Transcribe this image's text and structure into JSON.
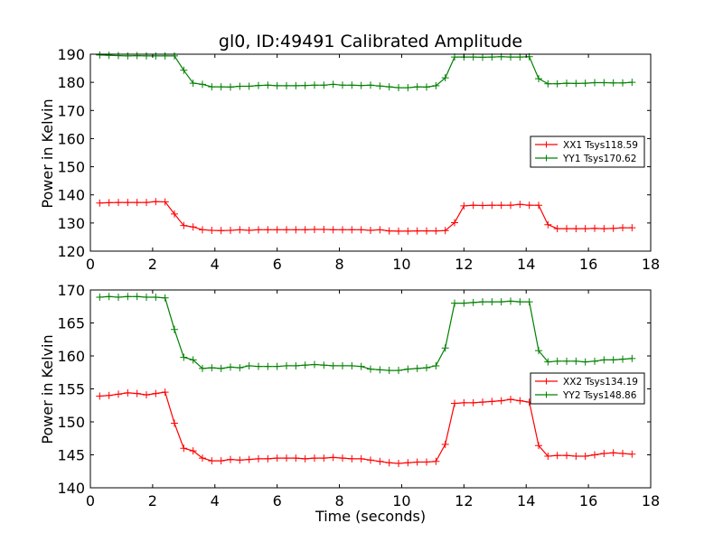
{
  "chart_data": [
    {
      "type": "line",
      "title": "gl0, ID:49491 Calibrated Amplitude",
      "xlabel": "",
      "ylabel": "Power in Kelvin",
      "xlim": [
        0,
        18
      ],
      "ylim": [
        120,
        190
      ],
      "xticks": [
        0,
        2,
        4,
        6,
        8,
        10,
        12,
        14,
        16,
        18
      ],
      "yticks": [
        120,
        130,
        140,
        150,
        160,
        170,
        180,
        190
      ],
      "legend_position": "right",
      "grid": false,
      "x": [
        0.3,
        0.6,
        0.9,
        1.2,
        1.5,
        1.8,
        2.1,
        2.4,
        2.7,
        3.0,
        3.3,
        3.6,
        3.9,
        4.2,
        4.5,
        4.8,
        5.1,
        5.4,
        5.7,
        6.0,
        6.3,
        6.6,
        6.9,
        7.2,
        7.5,
        7.8,
        8.1,
        8.4,
        8.7,
        9.0,
        9.3,
        9.6,
        9.9,
        10.2,
        10.5,
        10.8,
        11.1,
        11.4,
        11.7,
        12.0,
        12.3,
        12.6,
        12.9,
        13.2,
        13.5,
        13.8,
        14.1,
        14.4,
        14.7,
        15.0,
        15.3,
        15.6,
        15.9,
        16.2,
        16.5,
        16.8,
        17.1,
        17.4
      ],
      "series": [
        {
          "name": "XX1 Tsys118.59",
          "color": "#ff0000",
          "values": [
            137.1,
            137.2,
            137.3,
            137.3,
            137.3,
            137.3,
            137.6,
            137.5,
            133.2,
            129.1,
            128.6,
            127.6,
            127.4,
            127.3,
            127.4,
            127.6,
            127.4,
            127.6,
            127.6,
            127.6,
            127.6,
            127.6,
            127.6,
            127.7,
            127.7,
            127.6,
            127.6,
            127.6,
            127.6,
            127.4,
            127.6,
            127.2,
            127.1,
            127.1,
            127.2,
            127.2,
            127.2,
            127.3,
            130.1,
            136.1,
            136.3,
            136.2,
            136.3,
            136.3,
            136.3,
            136.6,
            136.3,
            136.3,
            129.4,
            128.0,
            128.0,
            128.0,
            128.0,
            128.1,
            128.0,
            128.1,
            128.3,
            128.3
          ]
        },
        {
          "name": "YY1 Tsys170.62",
          "color": "#008000",
          "values": [
            189.7,
            189.6,
            189.5,
            189.4,
            189.5,
            189.4,
            189.4,
            189.4,
            189.4,
            184.3,
            179.7,
            179.3,
            178.4,
            178.4,
            178.3,
            178.6,
            178.6,
            178.9,
            179.0,
            178.8,
            178.8,
            178.8,
            178.9,
            179.0,
            179.0,
            179.3,
            179.0,
            179.0,
            178.9,
            179.0,
            178.7,
            178.4,
            178.1,
            178.1,
            178.4,
            178.3,
            178.8,
            181.6,
            189.0,
            189.0,
            189.0,
            188.9,
            189.0,
            189.1,
            189.0,
            189.0,
            189.1,
            181.3,
            179.5,
            179.5,
            179.7,
            179.6,
            179.7,
            179.9,
            179.9,
            179.8,
            179.8,
            180.0
          ]
        }
      ]
    },
    {
      "type": "line",
      "title": "",
      "xlabel": "Time (seconds)",
      "ylabel": "Power in Kelvin",
      "xlim": [
        0,
        18
      ],
      "ylim": [
        140,
        170
      ],
      "xticks": [
        0,
        2,
        4,
        6,
        8,
        10,
        12,
        14,
        16,
        18
      ],
      "yticks": [
        140,
        145,
        150,
        155,
        160,
        165,
        170
      ],
      "legend_position": "right",
      "grid": false,
      "x": [
        0.3,
        0.6,
        0.9,
        1.2,
        1.5,
        1.8,
        2.1,
        2.4,
        2.7,
        3.0,
        3.3,
        3.6,
        3.9,
        4.2,
        4.5,
        4.8,
        5.1,
        5.4,
        5.7,
        6.0,
        6.3,
        6.6,
        6.9,
        7.2,
        7.5,
        7.8,
        8.1,
        8.4,
        8.7,
        9.0,
        9.3,
        9.6,
        9.9,
        10.2,
        10.5,
        10.8,
        11.1,
        11.4,
        11.7,
        12.0,
        12.3,
        12.6,
        12.9,
        13.2,
        13.5,
        13.8,
        14.1,
        14.4,
        14.7,
        15.0,
        15.3,
        15.6,
        15.9,
        16.2,
        16.5,
        16.8,
        17.1,
        17.4
      ],
      "series": [
        {
          "name": "XX2 Tsys134.19",
          "color": "#ff0000",
          "values": [
            153.9,
            154.0,
            154.2,
            154.4,
            154.3,
            154.1,
            154.3,
            154.5,
            149.8,
            146.0,
            145.6,
            144.5,
            144.1,
            144.1,
            144.3,
            144.2,
            144.3,
            144.4,
            144.4,
            144.5,
            144.5,
            144.5,
            144.4,
            144.5,
            144.5,
            144.6,
            144.5,
            144.4,
            144.4,
            144.2,
            144.0,
            143.8,
            143.7,
            143.8,
            143.9,
            143.9,
            144.0,
            146.6,
            152.8,
            152.9,
            152.9,
            153.0,
            153.1,
            153.2,
            153.4,
            153.2,
            153.0,
            146.4,
            144.8,
            144.9,
            144.9,
            144.8,
            144.8,
            145.0,
            145.2,
            145.3,
            145.2,
            145.1
          ]
        },
        {
          "name": "YY2 Tsys148.86",
          "color": "#008000",
          "values": [
            168.9,
            169.0,
            168.9,
            169.0,
            169.0,
            168.9,
            168.9,
            168.8,
            164.0,
            159.8,
            159.4,
            158.1,
            158.2,
            158.1,
            158.3,
            158.2,
            158.5,
            158.4,
            158.4,
            158.4,
            158.5,
            158.5,
            158.6,
            158.7,
            158.6,
            158.5,
            158.5,
            158.5,
            158.4,
            158.0,
            157.9,
            157.8,
            157.8,
            158.0,
            158.1,
            158.2,
            158.5,
            161.2,
            168.0,
            168.0,
            168.1,
            168.2,
            168.2,
            168.2,
            168.3,
            168.2,
            168.2,
            160.8,
            159.1,
            159.2,
            159.2,
            159.2,
            159.1,
            159.2,
            159.4,
            159.4,
            159.5,
            159.6
          ]
        }
      ]
    }
  ]
}
